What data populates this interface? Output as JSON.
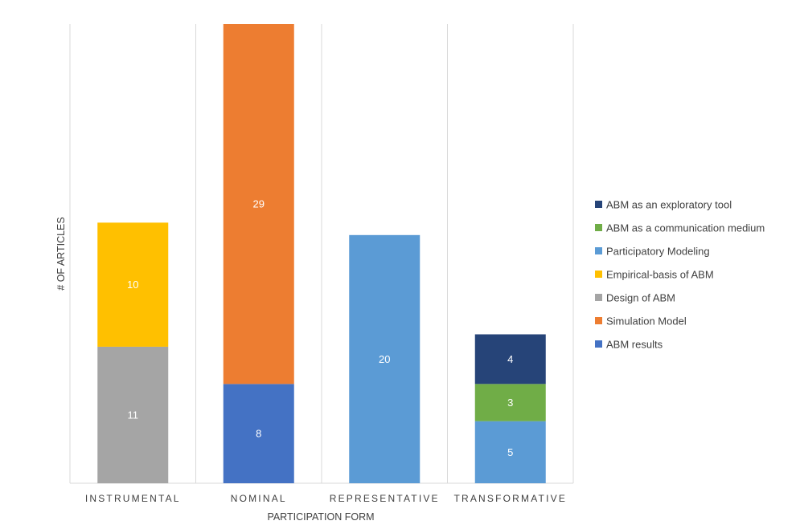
{
  "chart_data": {
    "type": "bar",
    "stacked": true,
    "categories": [
      "INSTRUMENTAL",
      "NOMINAL",
      "REPRESENTATIVE",
      "TRANSFORMATIVE"
    ],
    "xlabel": "PARTICIPATION FORM",
    "ylabel": "# OF ARTICLES",
    "ylim": [
      0,
      37
    ],
    "grid": "vertical category separators",
    "legend_position": "right",
    "series": [
      {
        "name": "ABM results",
        "color": "#4472C4",
        "values": [
          0,
          8,
          0,
          0
        ]
      },
      {
        "name": "Simulation Model",
        "color": "#ED7D31",
        "values": [
          0,
          29,
          0,
          0
        ]
      },
      {
        "name": "Design of ABM",
        "color": "#A5A5A5",
        "values": [
          11,
          0,
          0,
          0
        ]
      },
      {
        "name": "Empirical-basis of ABM",
        "color": "#FFC000",
        "values": [
          10,
          0,
          0,
          0
        ]
      },
      {
        "name": "Participatory Modeling",
        "color": "#5B9BD5",
        "values": [
          0,
          0,
          20,
          5
        ]
      },
      {
        "name": "ABM as a communication medium",
        "color": "#70AD47",
        "values": [
          0,
          0,
          0,
          3
        ]
      },
      {
        "name": "ABM as an exploratory tool",
        "color": "#264478",
        "values": [
          0,
          0,
          0,
          4
        ]
      }
    ],
    "legend_order": [
      "ABM as an exploratory tool",
      "ABM as a communication medium",
      "Participatory Modeling",
      "Empirical-basis of ABM",
      "Design of ABM",
      "Simulation Model",
      "ABM results"
    ]
  }
}
